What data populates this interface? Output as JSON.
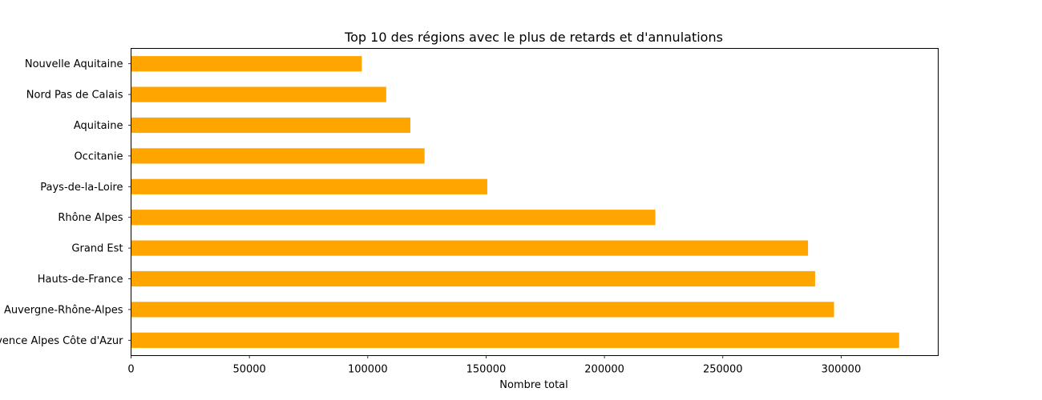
{
  "chart_data": {
    "type": "bar",
    "orientation": "horizontal",
    "title": "Top 10 des régions avec le plus de retards et d'annulations",
    "xlabel": "Nombre total",
    "ylabel": "",
    "categories": [
      "Nouvelle Aquitaine",
      "Nord Pas de Calais",
      "Aquitaine",
      "Occitanie",
      "Pays-de-la-Loire",
      "Rhône Alpes",
      "Grand Est",
      "Hauts-de-France",
      "Auvergne-Rhône-Alpes",
      "Provence Alpes Côte d'Azur"
    ],
    "values": [
      97500,
      107800,
      118000,
      124000,
      150500,
      221500,
      286000,
      289000,
      297000,
      324500
    ],
    "xlim": [
      0,
      341000
    ],
    "xticks": [
      0,
      50000,
      100000,
      150000,
      200000,
      250000,
      300000
    ],
    "xtick_labels": [
      "0",
      "50000",
      "100000",
      "150000",
      "200000",
      "250000",
      "300000"
    ],
    "bar_color": "#ffa500",
    "grid": false,
    "legend": "none"
  }
}
